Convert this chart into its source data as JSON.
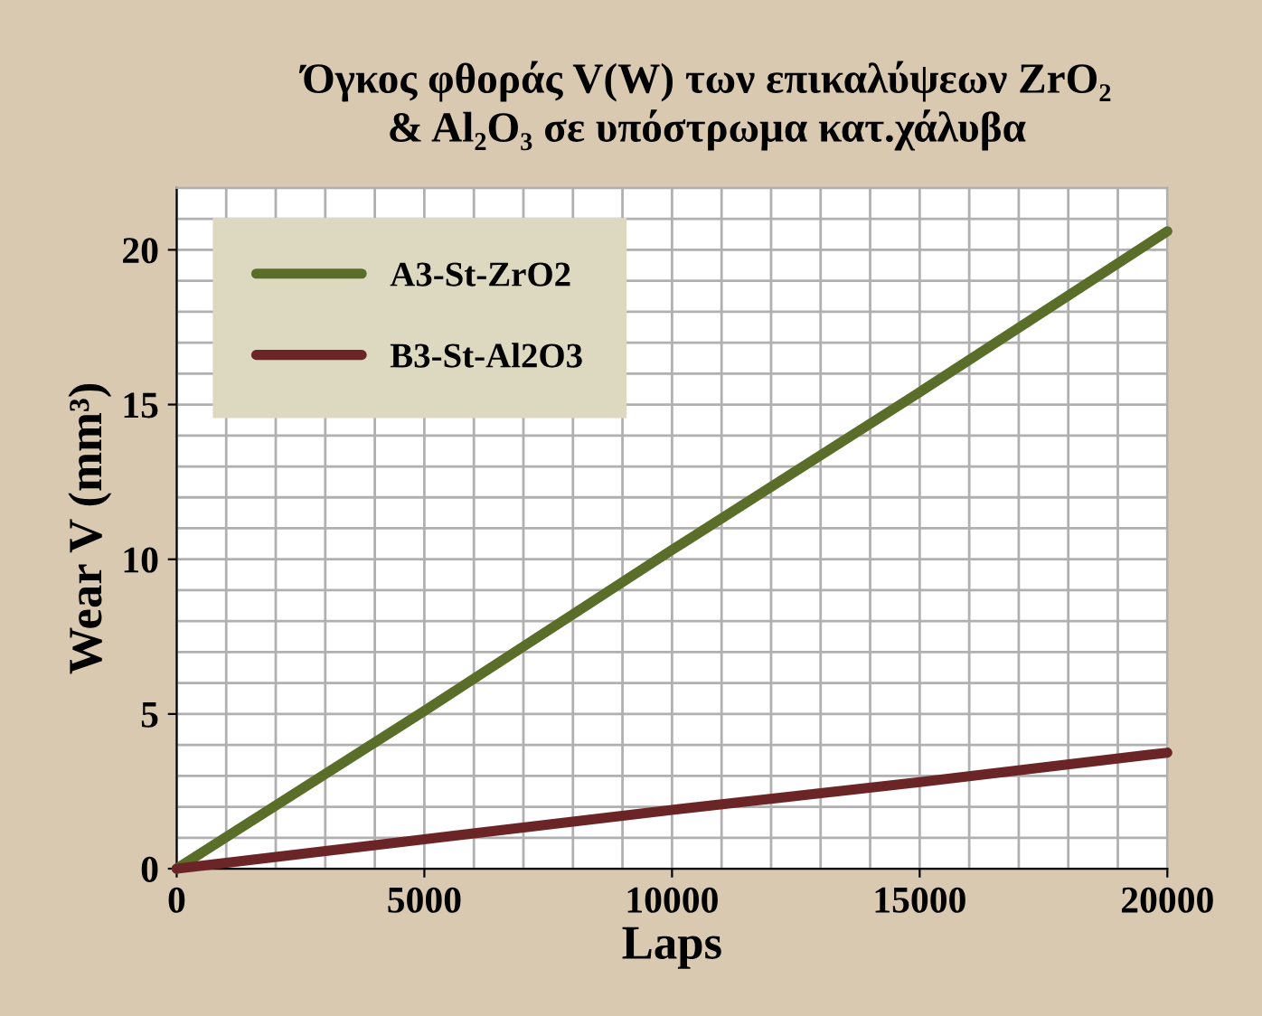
{
  "chart_data": {
    "type": "line",
    "title": "Όγκος φθοράς V(W) των επικαλύψεων ZrO₂\n& Al₂O₃ σε υπόστρωμα κατ.χάλυβα",
    "xlabel": "Laps",
    "ylabel": "Wear V (mm³)",
    "x": [
      0,
      5000,
      10000,
      15000,
      20000
    ],
    "series": [
      {
        "name": "A3-St-ZrO2",
        "color": "#5a6e2a",
        "values": [
          0,
          5.1,
          10.3,
          15.4,
          20.6
        ]
      },
      {
        "name": "B3-St-Al2O3",
        "color": "#6b2526",
        "values": [
          0,
          0.95,
          1.9,
          2.8,
          3.75
        ]
      }
    ],
    "xlim": [
      0,
      20000
    ],
    "xticks": [
      0,
      5000,
      10000,
      15000,
      20000
    ],
    "ylim": [
      0,
      22
    ],
    "yticks": [
      0,
      5,
      10,
      15,
      20
    ],
    "grid": true,
    "legend": "top left",
    "marker": "none",
    "line_style": "solid"
  }
}
